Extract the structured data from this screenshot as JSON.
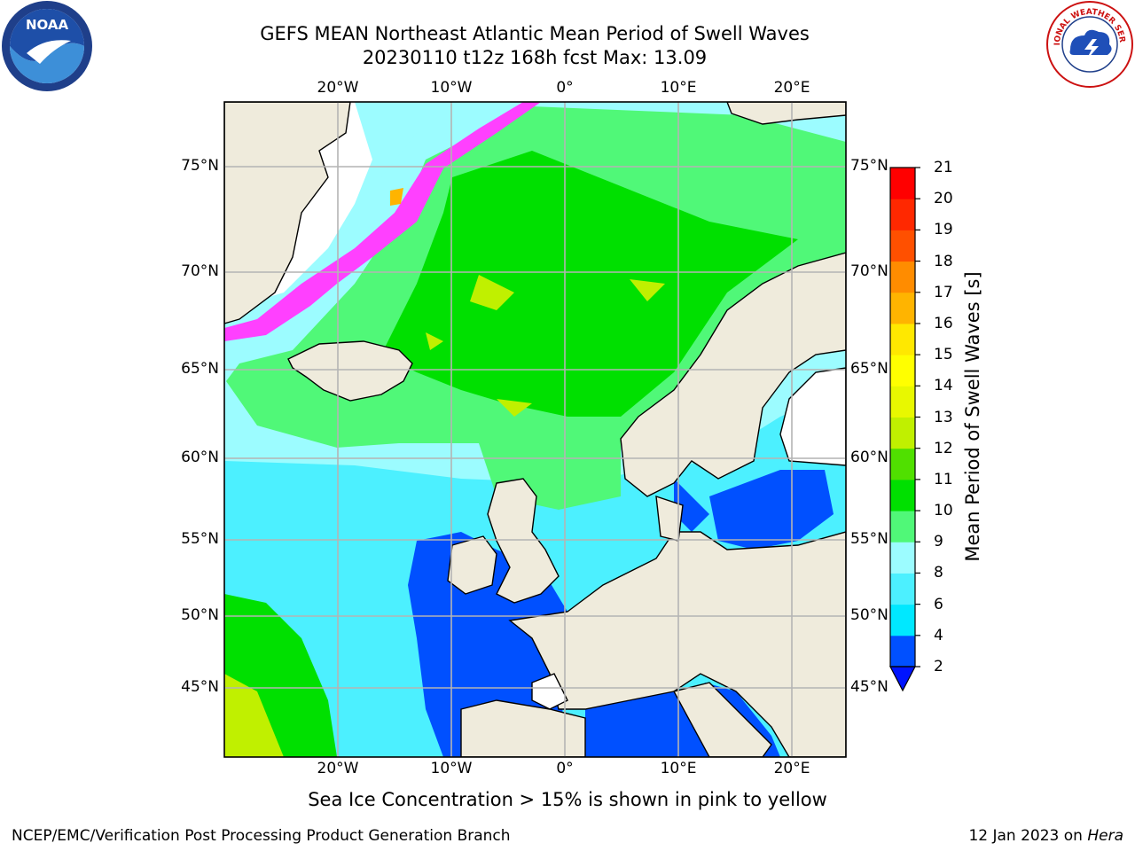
{
  "title": {
    "line1": "GEFS MEAN Northeast Atlantic Mean Period of Swell Waves",
    "line2": "20230110 t12z 168h fcst   Max: 13.09"
  },
  "axes": {
    "lon_ticks_top": [
      "20°W",
      "10°W",
      "0°",
      "10°E",
      "20°E"
    ],
    "lon_ticks_bottom": [
      "20°W",
      "10°W",
      "0°",
      "10°E",
      "20°E"
    ],
    "lat_ticks_left": [
      "75°N",
      "70°N",
      "65°N",
      "60°N",
      "55°N",
      "50°N",
      "45°N"
    ],
    "lat_ticks_right": [
      "75°N",
      "70°N",
      "65°N",
      "60°N",
      "55°N",
      "50°N",
      "45°N"
    ]
  },
  "colorbar": {
    "title": "Mean Period of Swell Waves [s]",
    "ticks": [
      "2",
      "4",
      "6",
      "8",
      "9",
      "10",
      "11",
      "12",
      "13",
      "14",
      "15",
      "16",
      "17",
      "18",
      "19",
      "20",
      "21"
    ],
    "colors": [
      "#0050ff",
      "#00e8ff",
      "#4cf0ff",
      "#9cfcff",
      "#50f878",
      "#00e000",
      "#50e000",
      "#c0f000",
      "#e8f800",
      "#ffff00",
      "#ffe800",
      "#ffb400",
      "#ff8c00",
      "#ff5000",
      "#ff2800",
      "#ff0000"
    ],
    "extend": "min"
  },
  "logos": {
    "left": "NOAA",
    "right": "NATIONAL WEATHER SERVICE"
  },
  "note": "Sea Ice Concentration > 15% is shown in pink to yellow",
  "credit": "NCEP/EMC/Verification Post Processing Product Generation Branch",
  "datestamp": {
    "date": "12 Jan 2023 on",
    "machine": "Hera"
  }
}
